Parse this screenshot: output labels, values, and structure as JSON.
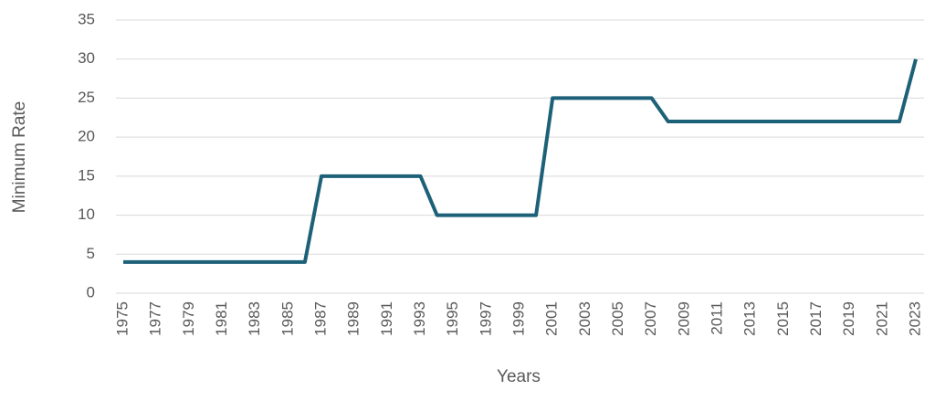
{
  "chart_data": {
    "type": "line",
    "xlabel": "Years",
    "ylabel": "Minimum Rate",
    "x": [
      1975,
      1976,
      1977,
      1978,
      1979,
      1980,
      1981,
      1982,
      1983,
      1984,
      1985,
      1986,
      1987,
      1988,
      1989,
      1990,
      1991,
      1992,
      1993,
      1994,
      1995,
      1996,
      1997,
      1998,
      1999,
      2000,
      2001,
      2002,
      2003,
      2004,
      2005,
      2006,
      2007,
      2008,
      2009,
      2010,
      2011,
      2012,
      2013,
      2014,
      2015,
      2016,
      2017,
      2018,
      2019,
      2020,
      2021,
      2022,
      2023
    ],
    "series": [
      {
        "color": "#1d6178",
        "values": [
          4,
          4,
          4,
          4,
          4,
          4,
          4,
          4,
          4,
          4,
          4,
          4,
          15,
          15,
          15,
          15,
          15,
          15,
          15,
          10,
          10,
          10,
          10,
          10,
          10,
          10,
          25,
          25,
          25,
          25,
          25,
          25,
          25,
          22,
          22,
          22,
          22,
          22,
          22,
          22,
          22,
          22,
          22,
          22,
          22,
          22,
          22,
          22,
          30
        ]
      }
    ],
    "xlim": [
      1975,
      2023
    ],
    "xticks": [
      1975,
      1977,
      1979,
      1981,
      1983,
      1985,
      1987,
      1989,
      1991,
      1993,
      1995,
      1997,
      1999,
      2001,
      2003,
      2005,
      2007,
      2009,
      2011,
      2013,
      2015,
      2017,
      2019,
      2021,
      2023
    ],
    "ylim": [
      0,
      35
    ],
    "yticks": [
      0,
      5,
      10,
      15,
      20,
      25,
      30,
      35
    ],
    "grid": true
  }
}
